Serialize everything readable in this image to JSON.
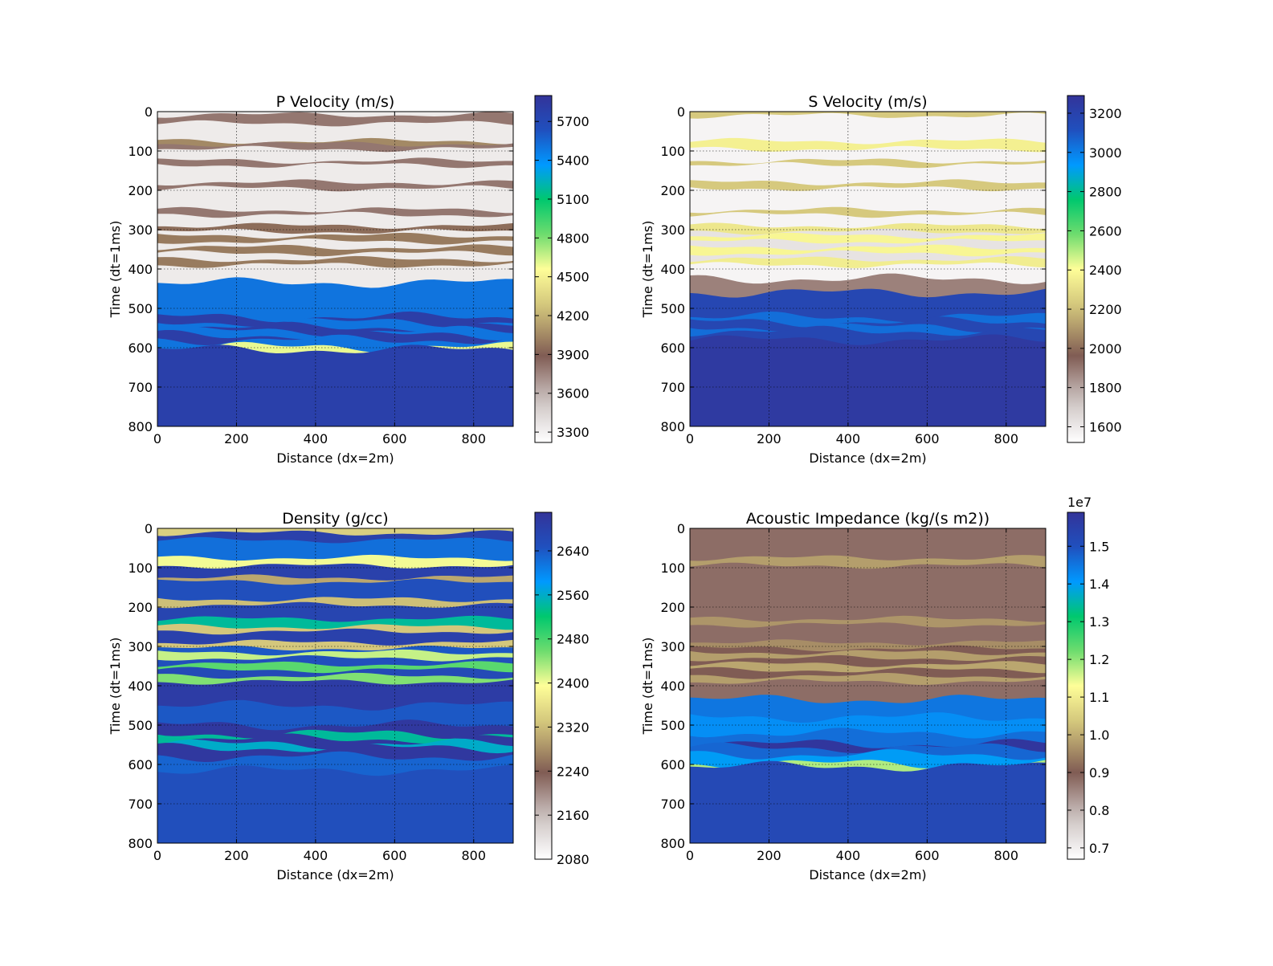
{
  "chart_data": [
    {
      "type": "heatmap",
      "title": "P Velocity (m/s)",
      "xlabel": "Distance (dx=2m)",
      "ylabel": "Time (dt=1ms)",
      "xlim": [
        0,
        900
      ],
      "ylim": [
        800,
        0
      ],
      "xticks": [
        "0",
        "200",
        "400",
        "600",
        "800"
      ],
      "yticks": [
        "0",
        "100",
        "200",
        "300",
        "400",
        "500",
        "600",
        "700",
        "800"
      ],
      "grid": true,
      "colorbar": {
        "range": [
          3220,
          5900
        ],
        "ticks": [
          "3300",
          "3600",
          "3900",
          "4200",
          "4500",
          "4800",
          "5100",
          "5400",
          "5700"
        ]
      },
      "layers": [
        {
          "top": 0,
          "value": 3330
        },
        {
          "top": 8,
          "value": 3800
        },
        {
          "top": 30,
          "value": 3330
        },
        {
          "top": 75,
          "value": 4050
        },
        {
          "top": 82,
          "value": 3800
        },
        {
          "top": 95,
          "value": 3330
        },
        {
          "top": 125,
          "value": 3800
        },
        {
          "top": 136,
          "value": 3330
        },
        {
          "top": 180,
          "value": 3800
        },
        {
          "top": 195,
          "value": 3330
        },
        {
          "top": 250,
          "value": 3800
        },
        {
          "top": 262,
          "value": 3330
        },
        {
          "top": 290,
          "value": 3950
        },
        {
          "top": 305,
          "value": 3330
        },
        {
          "top": 315,
          "value": 4000
        },
        {
          "top": 330,
          "value": 3330
        },
        {
          "top": 345,
          "value": 4000
        },
        {
          "top": 360,
          "value": 3330
        },
        {
          "top": 375,
          "value": 4000
        },
        {
          "top": 390,
          "value": 3330
        },
        {
          "top": 435,
          "value": 5500
        },
        {
          "top": 522,
          "value": 5800
        },
        {
          "top": 535,
          "value": 5500
        },
        {
          "top": 548,
          "value": 5800
        },
        {
          "top": 558,
          "value": 5500
        },
        {
          "top": 568,
          "value": 5800
        },
        {
          "top": 580,
          "value": 5500
        },
        {
          "top": 598,
          "value": 4600
        },
        {
          "top": 605,
          "value": 5780
        }
      ]
    },
    {
      "type": "heatmap",
      "title": "S Velocity (m/s)",
      "xlabel": "Distance (dx=2m)",
      "ylabel": "Time (dt=1ms)",
      "xlim": [
        0,
        900
      ],
      "ylim": [
        800,
        0
      ],
      "xticks": [
        "0",
        "200",
        "400",
        "600",
        "800"
      ],
      "yticks": [
        "0",
        "100",
        "200",
        "300",
        "400",
        "500",
        "600",
        "700",
        "800"
      ],
      "grid": true,
      "colorbar": {
        "range": [
          1520,
          3290
        ],
        "ticks": [
          "1600",
          "1800",
          "2000",
          "2200",
          "2400",
          "2600",
          "2800",
          "3000",
          "3200"
        ]
      },
      "layers": [
        {
          "top": 0,
          "value": 2230
        },
        {
          "top": 10,
          "value": 1560
        },
        {
          "top": 75,
          "value": 2360
        },
        {
          "top": 95,
          "value": 1560
        },
        {
          "top": 125,
          "value": 2230
        },
        {
          "top": 136,
          "value": 1560
        },
        {
          "top": 180,
          "value": 2230
        },
        {
          "top": 195,
          "value": 1560
        },
        {
          "top": 250,
          "value": 2230
        },
        {
          "top": 262,
          "value": 1560
        },
        {
          "top": 290,
          "value": 2330
        },
        {
          "top": 305,
          "value": 1620
        },
        {
          "top": 315,
          "value": 2380
        },
        {
          "top": 330,
          "value": 1620
        },
        {
          "top": 345,
          "value": 2380
        },
        {
          "top": 360,
          "value": 1620
        },
        {
          "top": 375,
          "value": 2350
        },
        {
          "top": 390,
          "value": 1560
        },
        {
          "top": 425,
          "value": 1880
        },
        {
          "top": 460,
          "value": 3170
        },
        {
          "top": 522,
          "value": 3040
        },
        {
          "top": 535,
          "value": 3170
        },
        {
          "top": 548,
          "value": 3040
        },
        {
          "top": 558,
          "value": 3170
        },
        {
          "top": 580,
          "value": 3250
        }
      ]
    },
    {
      "type": "heatmap",
      "title": "Density (g/cc)",
      "xlabel": "Distance (dx=2m)",
      "ylabel": "Time (dt=1ms)",
      "xlim": [
        0,
        900
      ],
      "ylim": [
        800,
        0
      ],
      "xticks": [
        "0",
        "200",
        "400",
        "600",
        "800"
      ],
      "yticks": [
        "0",
        "100",
        "200",
        "300",
        "400",
        "500",
        "600",
        "700",
        "800"
      ],
      "grid": true,
      "colorbar": {
        "range": [
          2080,
          2710
        ],
        "ticks": [
          "2080",
          "2160",
          "2240",
          "2320",
          "2400",
          "2480",
          "2560",
          "2640"
        ]
      },
      "layers": [
        {
          "top": 0,
          "value": 2340
        },
        {
          "top": 12,
          "value": 2680
        },
        {
          "top": 30,
          "value": 2620
        },
        {
          "top": 75,
          "value": 2400
        },
        {
          "top": 95,
          "value": 2680
        },
        {
          "top": 125,
          "value": 2300
        },
        {
          "top": 136,
          "value": 2650
        },
        {
          "top": 180,
          "value": 2320
        },
        {
          "top": 195,
          "value": 2670
        },
        {
          "top": 230,
          "value": 2540
        },
        {
          "top": 250,
          "value": 2330
        },
        {
          "top": 262,
          "value": 2680
        },
        {
          "top": 290,
          "value": 2330
        },
        {
          "top": 305,
          "value": 2640
        },
        {
          "top": 315,
          "value": 2420
        },
        {
          "top": 330,
          "value": 2650
        },
        {
          "top": 345,
          "value": 2470
        },
        {
          "top": 360,
          "value": 2660
        },
        {
          "top": 375,
          "value": 2450
        },
        {
          "top": 390,
          "value": 2690
        },
        {
          "top": 450,
          "value": 2640
        },
        {
          "top": 500,
          "value": 2700
        },
        {
          "top": 522,
          "value": 2540
        },
        {
          "top": 535,
          "value": 2700
        },
        {
          "top": 548,
          "value": 2560
        },
        {
          "top": 558,
          "value": 2700
        },
        {
          "top": 580,
          "value": 2630
        },
        {
          "top": 615,
          "value": 2650
        }
      ]
    },
    {
      "type": "heatmap",
      "title": "Acoustic Impedance (kg/(s m2))",
      "xlabel": "Distance (dx=2m)",
      "ylabel": "Time (dt=1ms)",
      "xlim": [
        0,
        900
      ],
      "ylim": [
        800,
        0
      ],
      "xticks": [
        "0",
        "200",
        "400",
        "600",
        "800"
      ],
      "yticks": [
        "0",
        "100",
        "200",
        "300",
        "400",
        "500",
        "600",
        "700",
        "800"
      ],
      "grid": true,
      "colorbar": {
        "range": [
          0.67,
          1.59
        ],
        "multiplier": "1e7",
        "ticks": [
          "0.7",
          "0.8",
          "0.9",
          "1.0",
          "1.1",
          "1.2",
          "1.3",
          "1.4",
          "1.5"
        ]
      },
      "layers": [
        {
          "top": 0,
          "value": 0.88
        },
        {
          "top": 75,
          "value": 0.98
        },
        {
          "top": 95,
          "value": 0.88
        },
        {
          "top": 230,
          "value": 0.97
        },
        {
          "top": 245,
          "value": 0.88
        },
        {
          "top": 290,
          "value": 0.96
        },
        {
          "top": 305,
          "value": 0.9
        },
        {
          "top": 315,
          "value": 0.98
        },
        {
          "top": 330,
          "value": 0.9
        },
        {
          "top": 345,
          "value": 0.99
        },
        {
          "top": 360,
          "value": 0.9
        },
        {
          "top": 375,
          "value": 0.98
        },
        {
          "top": 390,
          "value": 0.88
        },
        {
          "top": 435,
          "value": 1.45
        },
        {
          "top": 480,
          "value": 1.42
        },
        {
          "top": 520,
          "value": 1.46
        },
        {
          "top": 548,
          "value": 1.58
        },
        {
          "top": 558,
          "value": 1.47
        },
        {
          "top": 575,
          "value": 1.4
        },
        {
          "top": 598,
          "value": 1.18
        },
        {
          "top": 605,
          "value": 1.52
        }
      ]
    }
  ]
}
